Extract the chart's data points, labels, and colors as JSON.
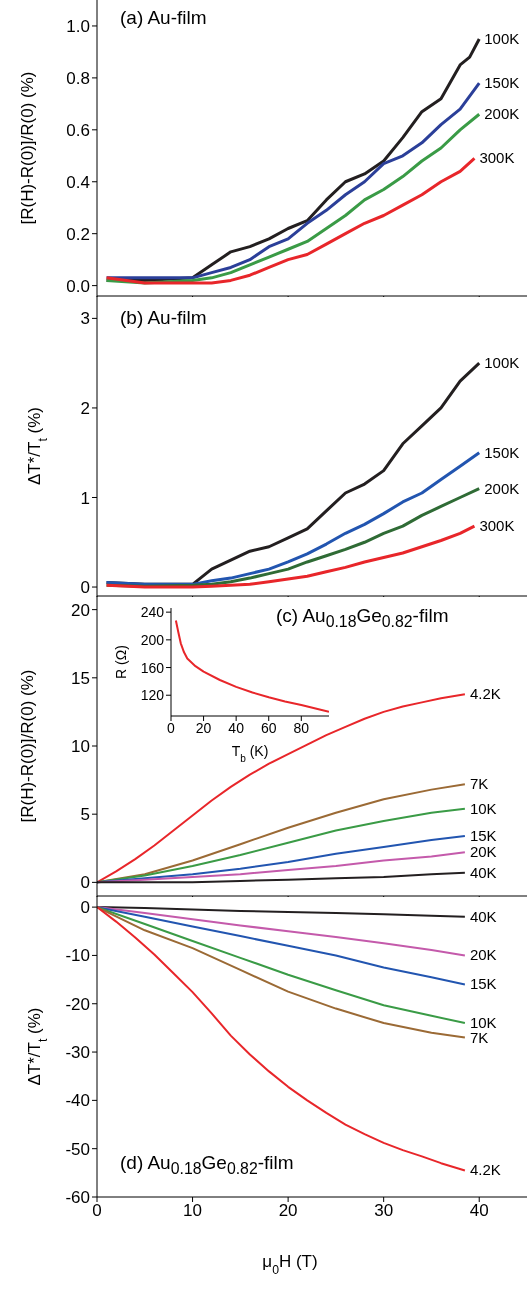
{
  "chart_data": [
    {
      "type": "line",
      "title": "(a) Au-film",
      "ylabel": "[R(H)-R(0)]/R(0) (%)",
      "xlim": [
        0,
        45
      ],
      "xticks": [
        0,
        10,
        20,
        30,
        40
      ],
      "ylim": [
        -0.04,
        1.1
      ],
      "yticks": [
        {
          "value": 0,
          "label": "0.0"
        },
        {
          "value": 0.2,
          "label": "0.2"
        },
        {
          "value": 0.4,
          "label": "0.4"
        },
        {
          "value": 0.6,
          "label": "0.6"
        },
        {
          "value": 0.8,
          "label": "0.8"
        },
        {
          "value": 1,
          "label": "1.0"
        }
      ],
      "tick_labels": "y",
      "series": [
        {
          "name": "100K",
          "color": "#231f20",
          "x": [
            1,
            5,
            10,
            12,
            14,
            16,
            18,
            20,
            22,
            24,
            26,
            28,
            30,
            32,
            34,
            36,
            38,
            39,
            40
          ],
          "values": [
            0.02,
            0.02,
            0.03,
            0.08,
            0.13,
            0.15,
            0.18,
            0.22,
            0.25,
            0.33,
            0.4,
            0.43,
            0.48,
            0.57,
            0.67,
            0.72,
            0.85,
            0.88,
            0.95
          ]
        },
        {
          "name": "150K",
          "color": "#2b3f99",
          "x": [
            1,
            5,
            10,
            12,
            14,
            16,
            18,
            20,
            22,
            24,
            26,
            28,
            30,
            32,
            34,
            36,
            38,
            40
          ],
          "values": [
            0.03,
            0.03,
            0.03,
            0.05,
            0.07,
            0.1,
            0.15,
            0.18,
            0.24,
            0.29,
            0.35,
            0.4,
            0.47,
            0.5,
            0.55,
            0.62,
            0.68,
            0.78
          ]
        },
        {
          "name": "200K",
          "color": "#3a9b46",
          "x": [
            1,
            5,
            10,
            12,
            14,
            16,
            18,
            20,
            22,
            24,
            26,
            28,
            30,
            32,
            34,
            36,
            38,
            40
          ],
          "values": [
            0.02,
            0.01,
            0.02,
            0.03,
            0.05,
            0.08,
            0.11,
            0.14,
            0.17,
            0.22,
            0.27,
            0.33,
            0.37,
            0.42,
            0.48,
            0.53,
            0.6,
            0.66
          ]
        },
        {
          "name": "300K",
          "color": "#e8262a",
          "x": [
            1,
            5,
            10,
            12,
            14,
            16,
            18,
            20,
            22,
            24,
            26,
            28,
            30,
            32,
            34,
            36,
            38,
            39.5
          ],
          "values": [
            0.03,
            0.01,
            0.01,
            0.01,
            0.02,
            0.04,
            0.07,
            0.1,
            0.12,
            0.16,
            0.2,
            0.24,
            0.27,
            0.31,
            0.35,
            0.4,
            0.44,
            0.49
          ]
        }
      ]
    },
    {
      "type": "line",
      "title": "(b) Au-film",
      "ylabel": "ΔT*/T$_{t}$ (%)",
      "xlim": [
        0,
        45
      ],
      "xticks": [
        0,
        10,
        20,
        30,
        40
      ],
      "ylim": [
        -0.1,
        3.25
      ],
      "yticks": [
        0,
        1,
        2,
        3
      ],
      "tick_labels": "y",
      "series": [
        {
          "name": "100K",
          "color": "#231f20",
          "x": [
            1,
            5,
            10,
            12,
            14,
            16,
            18,
            20,
            22,
            24,
            26,
            28,
            30,
            32,
            34,
            36,
            38,
            39,
            40
          ],
          "values": [
            0.05,
            0.03,
            0.03,
            0.2,
            0.3,
            0.4,
            0.45,
            0.55,
            0.65,
            0.85,
            1.05,
            1.15,
            1.3,
            1.6,
            1.8,
            2.0,
            2.3,
            2.4,
            2.5
          ]
        },
        {
          "name": "150K",
          "color": "#2255b0",
          "x": [
            1,
            5,
            10,
            12,
            14,
            16,
            18,
            20,
            22,
            24,
            26,
            28,
            30,
            32,
            34,
            36,
            38,
            40
          ],
          "values": [
            0.05,
            0.03,
            0.03,
            0.07,
            0.1,
            0.15,
            0.2,
            0.28,
            0.37,
            0.48,
            0.6,
            0.7,
            0.82,
            0.95,
            1.05,
            1.2,
            1.35,
            1.5
          ]
        },
        {
          "name": "200K",
          "color": "#2f6b35",
          "x": [
            1,
            5,
            10,
            12,
            14,
            16,
            18,
            20,
            22,
            24,
            26,
            28,
            30,
            32,
            34,
            36,
            38,
            40
          ],
          "values": [
            0.02,
            0.01,
            0.02,
            0.03,
            0.06,
            0.1,
            0.15,
            0.2,
            0.28,
            0.35,
            0.42,
            0.5,
            0.6,
            0.68,
            0.8,
            0.9,
            1.0,
            1.1
          ]
        },
        {
          "name": "300K",
          "color": "#e8262a",
          "x": [
            1,
            5,
            10,
            12,
            14,
            16,
            18,
            20,
            22,
            24,
            26,
            28,
            30,
            32,
            34,
            36,
            38,
            39.5
          ],
          "values": [
            0.02,
            0,
            0,
            0.01,
            0.02,
            0.03,
            0.06,
            0.09,
            0.12,
            0.17,
            0.22,
            0.28,
            0.33,
            0.38,
            0.45,
            0.52,
            0.6,
            0.68
          ]
        }
      ]
    },
    {
      "type": "line",
      "title": "(c) Au$_{0.18}$Ge$_{0.82}$-film",
      "ylabel": "[R(H)-R(0)]/R(0) (%)",
      "xlim": [
        0,
        45
      ],
      "xticks": [
        0,
        10,
        20,
        30,
        40
      ],
      "ylim": [
        -1,
        21
      ],
      "yticks": [
        0,
        5,
        10,
        15,
        20
      ],
      "tick_labels": "y",
      "series": [
        {
          "name": "4.2K",
          "color": "#e8262a",
          "x": [
            0,
            2,
            4,
            6,
            8,
            10,
            12,
            14,
            16,
            18,
            20,
            22,
            24,
            26,
            28,
            30,
            32,
            34,
            36,
            38.5
          ],
          "values": [
            0,
            0.8,
            1.7,
            2.7,
            3.8,
            4.9,
            6.0,
            7.0,
            7.9,
            8.7,
            9.4,
            10.1,
            10.8,
            11.4,
            12.0,
            12.5,
            12.9,
            13.2,
            13.5,
            13.8
          ]
        },
        {
          "name": "7K",
          "color": "#9b6a35",
          "x": [
            0,
            5,
            10,
            15,
            20,
            25,
            30,
            35,
            38.5
          ],
          "values": [
            0,
            0.6,
            1.6,
            2.8,
            4.0,
            5.1,
            6.1,
            6.8,
            7.2
          ]
        },
        {
          "name": "10K",
          "color": "#3a9b46",
          "x": [
            0,
            5,
            10,
            15,
            20,
            25,
            30,
            35,
            38.5
          ],
          "values": [
            0,
            0.5,
            1.2,
            2.0,
            2.9,
            3.8,
            4.5,
            5.1,
            5.4
          ]
        },
        {
          "name": "15K",
          "color": "#2255b0",
          "x": [
            0,
            5,
            10,
            15,
            20,
            25,
            30,
            35,
            38.5
          ],
          "values": [
            0,
            0.3,
            0.6,
            1.0,
            1.5,
            2.1,
            2.6,
            3.1,
            3.4
          ]
        },
        {
          "name": "20K",
          "color": "#c45aab",
          "x": [
            0,
            5,
            10,
            15,
            20,
            25,
            30,
            35,
            38.5
          ],
          "values": [
            0,
            0.2,
            0.4,
            0.6,
            0.9,
            1.2,
            1.6,
            1.9,
            2.2
          ]
        },
        {
          "name": "40K",
          "color": "#231f20",
          "x": [
            0,
            5,
            10,
            15,
            20,
            25,
            30,
            35,
            38.5
          ],
          "values": [
            0,
            0,
            0,
            0.1,
            0.2,
            0.3,
            0.4,
            0.6,
            0.7
          ]
        }
      ]
    },
    {
      "type": "line",
      "xlabel": "T$_{b}$ (K)",
      "ylabel": "R (Ω)",
      "xlim": [
        0,
        97
      ],
      "xticks": [
        0,
        20,
        40,
        60,
        80
      ],
      "ylim": [
        90,
        246
      ],
      "yticks": [
        120,
        160,
        200,
        240
      ],
      "series": [
        {
          "color": "#e8262a",
          "x": [
            3,
            4.5,
            6,
            8,
            10,
            15,
            20,
            30,
            40,
            50,
            60,
            70,
            80,
            90,
            97
          ],
          "values": [
            228,
            211,
            195,
            182,
            173,
            162,
            154,
            142,
            132,
            124,
            117,
            111,
            106,
            100,
            96
          ]
        }
      ]
    },
    {
      "type": "line",
      "title": "(d) Au$_{0.18}$Ge$_{0.82}$-film",
      "xlabel": "μ$_{0}$H (T)",
      "ylabel": "ΔT*/T$_{t}$ (%)",
      "xlim": [
        0,
        45
      ],
      "xticks": [
        0,
        10,
        20,
        30,
        40
      ],
      "ylim": [
        -60,
        2.3
      ],
      "yticks": [
        -60,
        -50,
        -40,
        -30,
        -20,
        -10,
        0
      ],
      "series": [
        {
          "name": "40K",
          "color": "#231f20",
          "x": [
            0,
            5,
            10,
            15,
            20,
            25,
            30,
            35,
            38.5
          ],
          "values": [
            0,
            -0.2,
            -0.5,
            -0.8,
            -1,
            -1.2,
            -1.5,
            -1.8,
            -2
          ]
        },
        {
          "name": "20K",
          "color": "#c45aab",
          "x": [
            0,
            5,
            10,
            15,
            20,
            25,
            30,
            35,
            38.5
          ],
          "values": [
            0,
            -1.2,
            -2.5,
            -3.8,
            -5,
            -6.2,
            -7.5,
            -8.9,
            -10
          ]
        },
        {
          "name": "15K",
          "color": "#2255b0",
          "x": [
            0,
            5,
            10,
            15,
            20,
            25,
            30,
            35,
            38.5
          ],
          "values": [
            0,
            -2,
            -4,
            -6,
            -8,
            -10,
            -12.5,
            -14.5,
            -16
          ]
        },
        {
          "name": "10K",
          "color": "#3a9b46",
          "x": [
            0,
            5,
            10,
            15,
            20,
            25,
            30,
            35,
            38.5
          ],
          "values": [
            0,
            -3.5,
            -7,
            -10.5,
            -14,
            -17.2,
            -20.3,
            -22.5,
            -24
          ]
        },
        {
          "name": "7K",
          "color": "#9b6a35",
          "x": [
            0,
            5,
            10,
            15,
            20,
            25,
            30,
            35,
            38.5
          ],
          "values": [
            0,
            -4.8,
            -8.5,
            -13,
            -17.5,
            -21,
            -24,
            -26,
            -27
          ]
        },
        {
          "name": "4.2K",
          "color": "#e8262a",
          "x": [
            0,
            2,
            4,
            6,
            8,
            10,
            12,
            14,
            16,
            18,
            20,
            22,
            24,
            26,
            28,
            30,
            32,
            34,
            36,
            38.5
          ],
          "values": [
            0,
            -3,
            -6.3,
            -9.8,
            -13.7,
            -17.6,
            -22,
            -26.6,
            -30.5,
            -34,
            -37.2,
            -40,
            -42.6,
            -45,
            -47,
            -48.8,
            -50.3,
            -51.6,
            -53,
            -54.5
          ]
        }
      ]
    }
  ]
}
